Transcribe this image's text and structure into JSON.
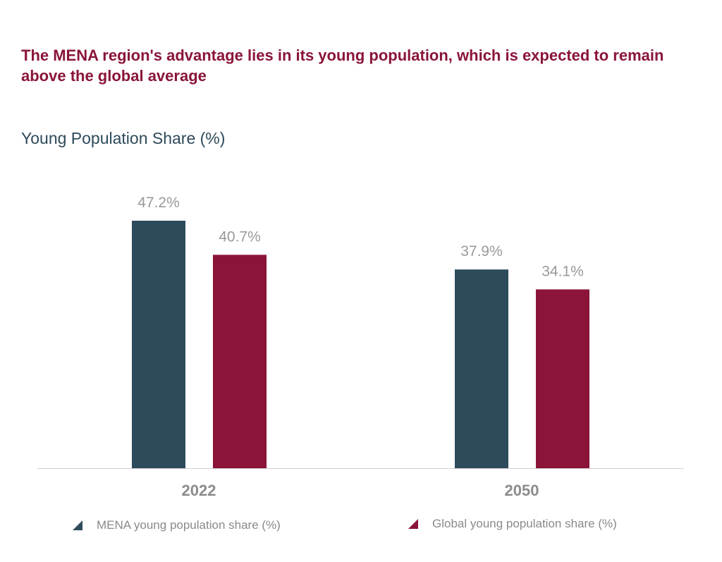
{
  "title": "The MENA region's advantage lies in its young population, which is expected to remain above the global average",
  "subtitle": "Young Population Share (%)",
  "colors": {
    "title": "#8a1538",
    "subtitle": "#2e4a5a",
    "mena": "#2e4b5b",
    "global": "#8a1538",
    "value_label": "#9a9a9a",
    "category_label": "#8c8c8c",
    "baseline": "#d0d0d0"
  },
  "legend": {
    "mena_label": "MENA young population share (%)",
    "global_label": "Global young population share (%)"
  },
  "chart_data": {
    "type": "bar",
    "title": "The MENA region's advantage lies in its young population, which is expected to remain above the global average",
    "subtitle": "Young Population Share (%)",
    "categories": [
      "2022",
      "2050"
    ],
    "series": [
      {
        "name": "MENA young population share (%)",
        "values": [
          47.2,
          37.9
        ],
        "labels": [
          "47.2%",
          "37.9%"
        ],
        "color": "#2e4b5b"
      },
      {
        "name": "Global young population share (%)",
        "values": [
          40.7,
          34.1
        ],
        "labels": [
          "40.7%",
          "34.1%"
        ],
        "color": "#8a1538"
      }
    ],
    "ylim": [
      0,
      47.2
    ],
    "grid": false,
    "legend_position": "bottom"
  }
}
